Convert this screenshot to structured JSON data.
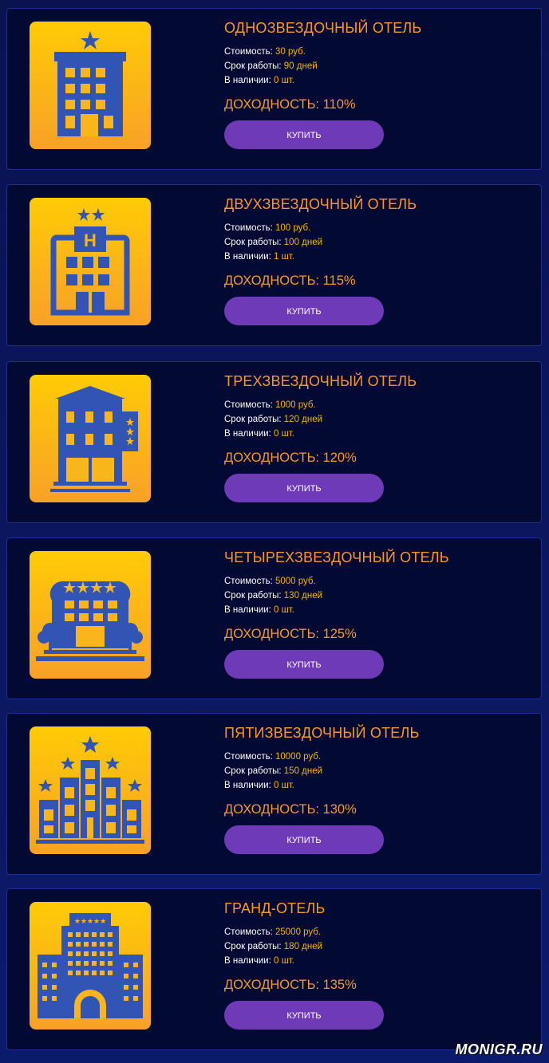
{
  "labels": {
    "cost": "Стоимость:",
    "term": "Срок работы:",
    "stock": "В наличии:",
    "profit_prefix": "ДОХОДНОСТЬ:",
    "buy": "КУПИТЬ"
  },
  "hotels": [
    {
      "title": "ОДНОЗВЕЗДОЧНЫЙ ОТЕЛЬ",
      "cost": "30 руб.",
      "term": "90 дней",
      "stock": "0 шт.",
      "profit": "ДОХОДНОСТЬ: 110%",
      "icon": "one-star-hotel-icon"
    },
    {
      "title": "ДВУХЗВЕЗДОЧНЫЙ ОТЕЛЬ",
      "cost": "100 руб.",
      "term": "100 дней",
      "stock": "1 шт.",
      "profit": "ДОХОДНОСТЬ: 115%",
      "icon": "two-star-hotel-icon"
    },
    {
      "title": "ТРЕХЗВЕЗДОЧНЫЙ ОТЕЛЬ",
      "cost": "1000 руб.",
      "term": "120 дней",
      "stock": "0 шт.",
      "profit": "ДОХОДНОСТЬ: 120%",
      "icon": "three-star-hotel-icon"
    },
    {
      "title": "ЧЕТЫРЕХЗВЕЗДОЧНЫЙ ОТЕЛЬ",
      "cost": "5000 руб.",
      "term": "130 дней",
      "stock": "0 шт.",
      "profit": "ДОХОДНОСТЬ: 125%",
      "icon": "four-star-hotel-icon"
    },
    {
      "title": "ПЯТИЗВЕЗДОЧНЫЙ ОТЕЛЬ",
      "cost": "10000 руб.",
      "term": "150 дней",
      "stock": "0 шт.",
      "profit": "ДОХОДНОСТЬ: 130%",
      "icon": "five-star-hotel-icon"
    },
    {
      "title": "ГРАНД-ОТЕЛЬ",
      "cost": "25000 руб.",
      "term": "180 дней",
      "stock": "0 шт.",
      "profit": "ДОХОДНОСТЬ: 135%",
      "icon": "grand-hotel-icon"
    }
  ],
  "colors": {
    "background": "#0a1350",
    "card": "#020a33",
    "accent_orange": "#f7962d",
    "value_yellow": "#f4b400",
    "button": "#6f3ab8",
    "icon_blue": "#3154b5"
  },
  "watermark": "MONIGR.RU"
}
